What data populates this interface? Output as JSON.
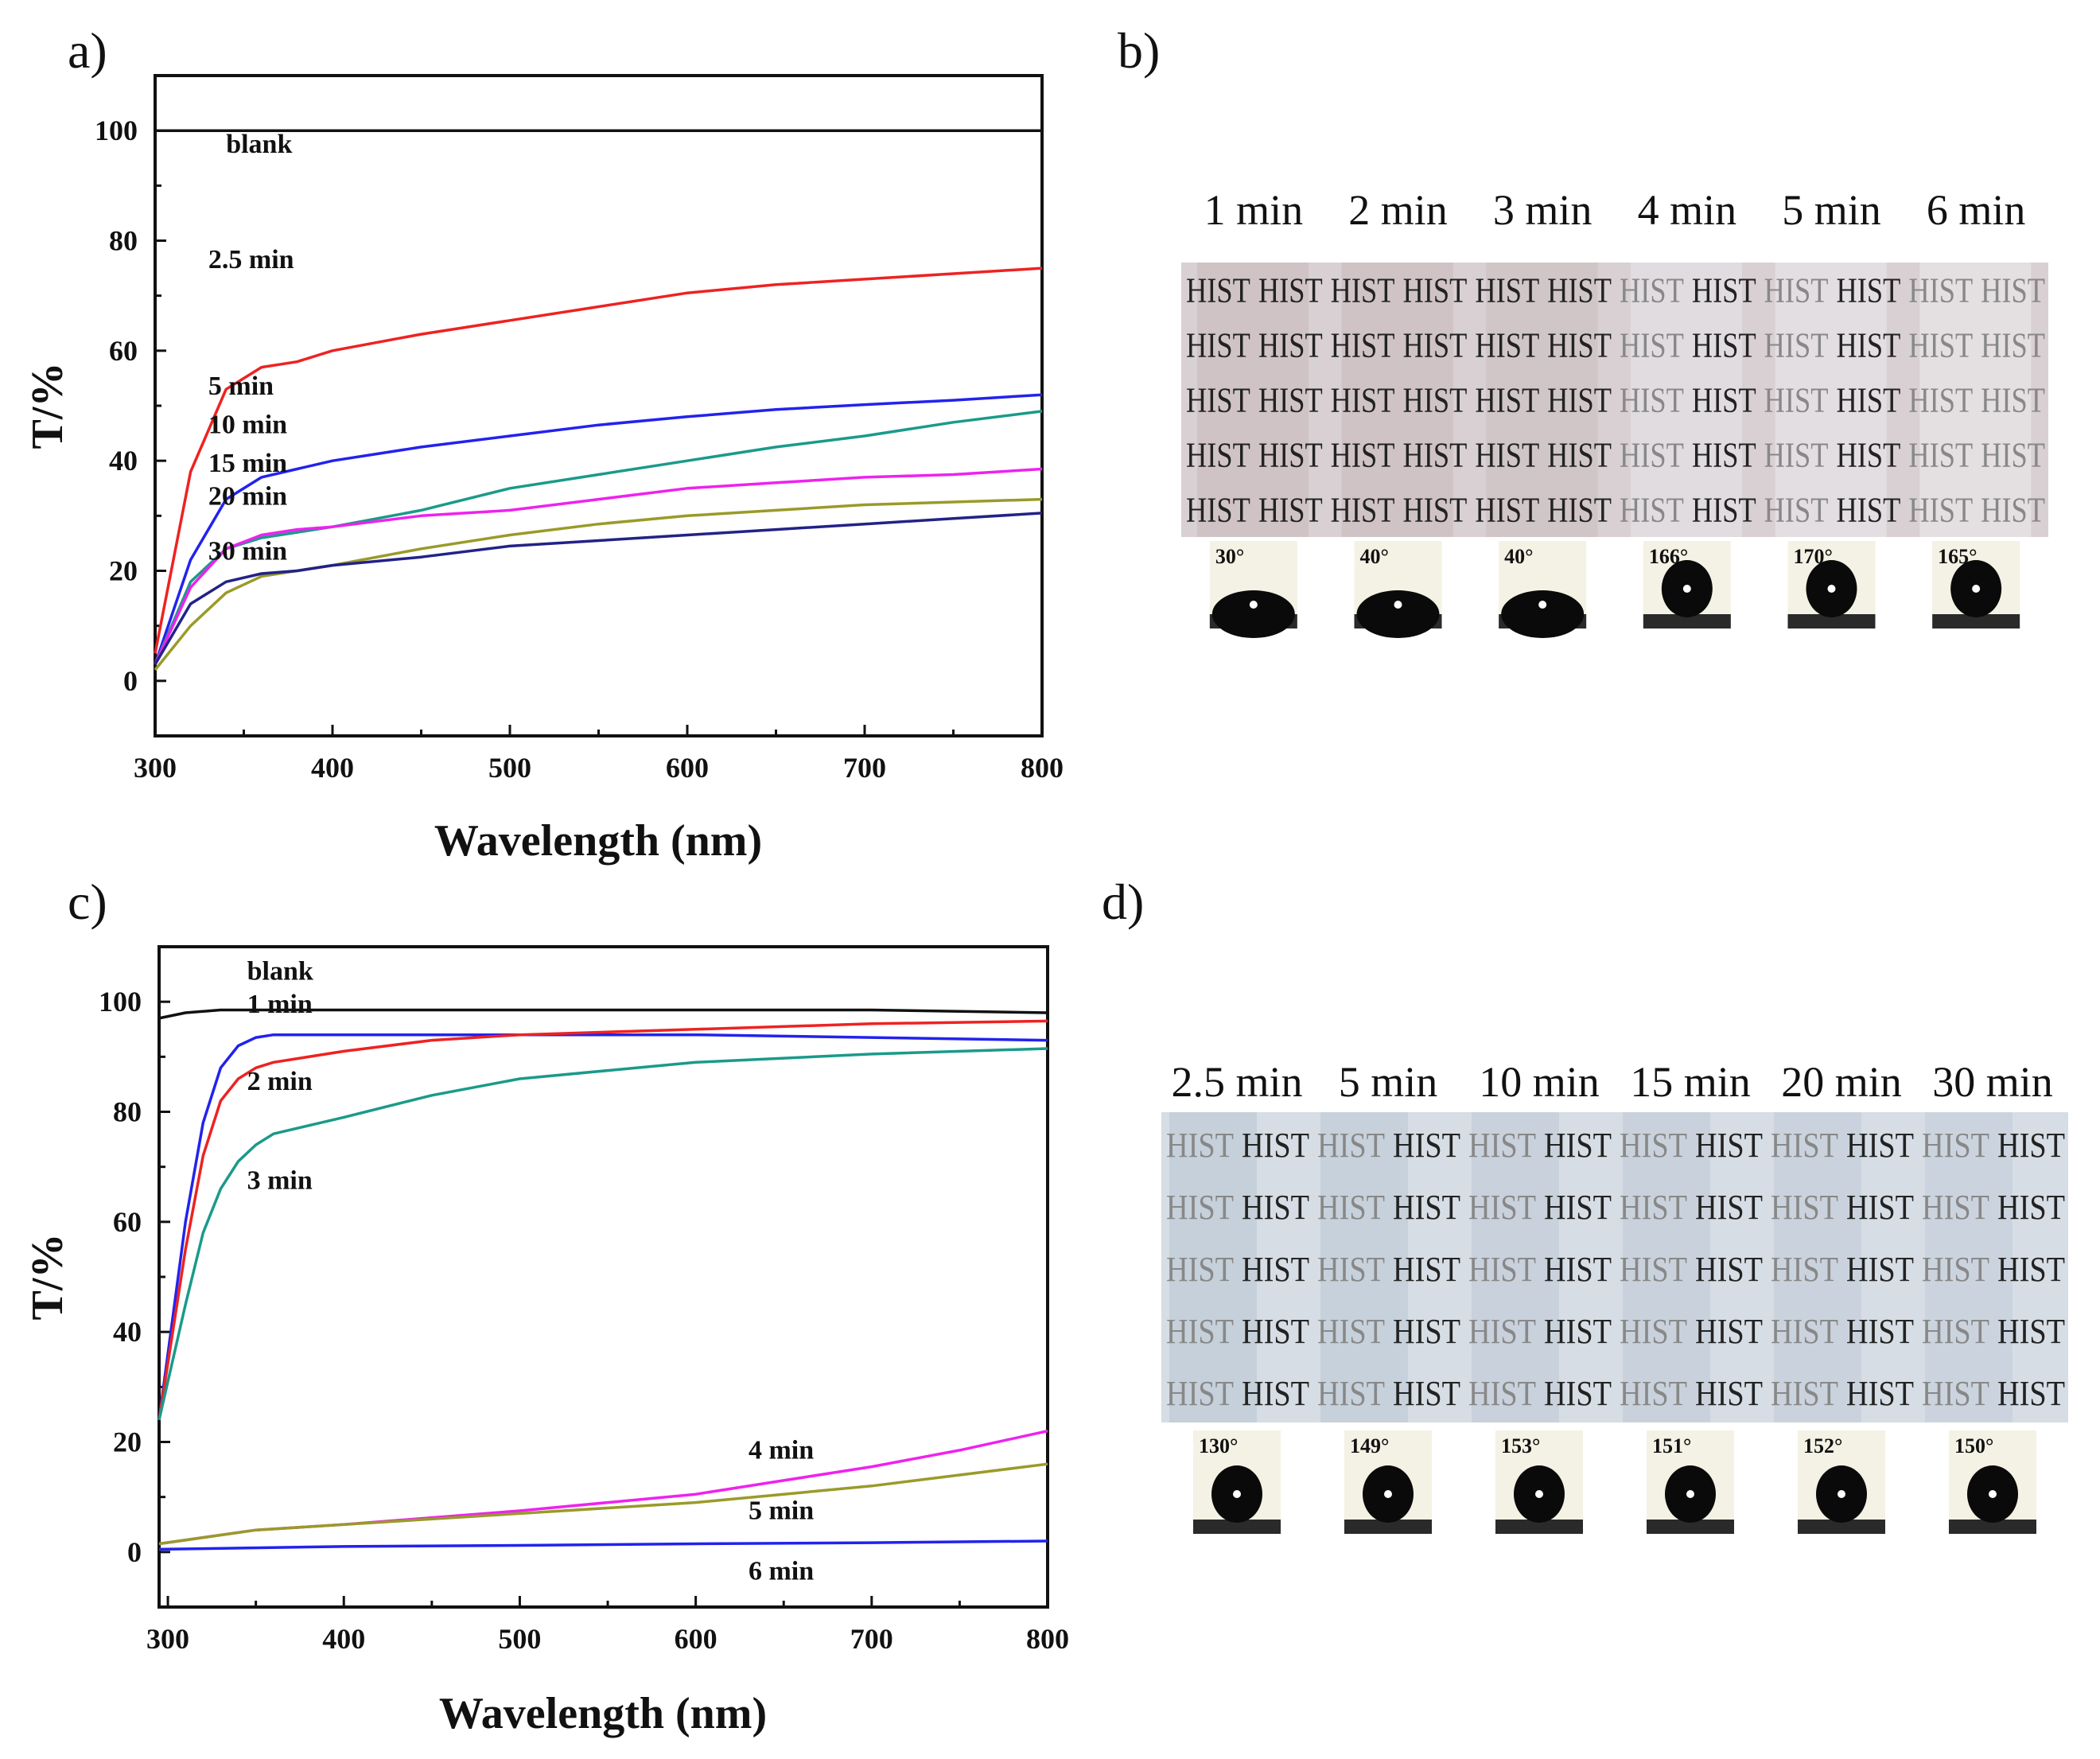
{
  "chart_data": [
    {
      "panel": "a)",
      "type": "line",
      "xlabel": "Wavelength (nm)",
      "ylabel": "T/%",
      "xlim": [
        300,
        800
      ],
      "ylim": [
        -10,
        110
      ],
      "xticks": [
        300,
        400,
        500,
        600,
        700,
        800
      ],
      "yticks": [
        0,
        20,
        40,
        60,
        80,
        100
      ],
      "series": [
        {
          "name": "blank",
          "color": "#111111",
          "label_at": [
            340,
            96
          ],
          "x": [
            300,
            400,
            500,
            600,
            700,
            800
          ],
          "values": [
            100,
            100,
            100,
            100,
            100,
            100
          ]
        },
        {
          "name": "2.5 min",
          "color": "#ee2222",
          "label_at": [
            330,
            75
          ],
          "x": [
            300,
            320,
            340,
            360,
            380,
            400,
            450,
            500,
            550,
            600,
            650,
            700,
            750,
            800
          ],
          "values": [
            5,
            38,
            53,
            57,
            58,
            60,
            63,
            65.5,
            68,
            70.5,
            72,
            73,
            74,
            75
          ]
        },
        {
          "name": "5 min",
          "color": "#2222ee",
          "label_at": [
            330,
            52
          ],
          "x": [
            300,
            320,
            340,
            360,
            380,
            400,
            450,
            500,
            550,
            600,
            650,
            700,
            750,
            800
          ],
          "values": [
            3,
            22,
            33,
            37,
            38.5,
            40,
            42.5,
            44.5,
            46.5,
            48,
            49.3,
            50.2,
            51,
            52
          ]
        },
        {
          "name": "10 min",
          "color": "#1a9a8a",
          "label_at": [
            330,
            45
          ],
          "x": [
            300,
            320,
            340,
            360,
            380,
            400,
            450,
            500,
            550,
            600,
            650,
            700,
            750,
            800
          ],
          "values": [
            3,
            18,
            24,
            26,
            27,
            28,
            31,
            35,
            37.5,
            40,
            42.5,
            44.5,
            47,
            49
          ]
        },
        {
          "name": "15 min",
          "color": "#ee22ee",
          "label_at": [
            330,
            38
          ],
          "x": [
            300,
            320,
            340,
            360,
            380,
            400,
            450,
            500,
            550,
            600,
            650,
            700,
            750,
            800
          ],
          "values": [
            3,
            17,
            24,
            26.5,
            27.5,
            28,
            30,
            31,
            33,
            35,
            36,
            37,
            37.5,
            38.5
          ]
        },
        {
          "name": "20 min",
          "color": "#9a9a2a",
          "label_at": [
            330,
            32
          ],
          "x": [
            300,
            320,
            340,
            360,
            380,
            400,
            450,
            500,
            550,
            600,
            650,
            700,
            750,
            800
          ],
          "values": [
            2,
            10,
            16,
            19,
            20,
            21,
            24,
            26.5,
            28.5,
            30,
            31,
            32,
            32.5,
            33
          ]
        },
        {
          "name": "30 min",
          "color": "#222288",
          "label_at": [
            330,
            22
          ],
          "x": [
            300,
            320,
            340,
            360,
            380,
            400,
            450,
            500,
            550,
            600,
            650,
            700,
            750,
            800
          ],
          "values": [
            3,
            14,
            18,
            19.5,
            20,
            21,
            22.5,
            24.5,
            25.5,
            26.5,
            27.5,
            28.5,
            29.5,
            30.5
          ]
        }
      ]
    },
    {
      "panel": "c)",
      "type": "line",
      "xlabel": "Wavelength (nm)",
      "ylabel": "T/%",
      "xlim": [
        295,
        800
      ],
      "ylim": [
        -10,
        110
      ],
      "xticks": [
        300,
        400,
        500,
        600,
        700,
        800
      ],
      "yticks": [
        0,
        20,
        40,
        60,
        80,
        100
      ],
      "series": [
        {
          "name": "blank",
          "color": "#111111",
          "label_at": [
            345,
            104
          ],
          "x": [
            295,
            310,
            330,
            400,
            500,
            600,
            700,
            800
          ],
          "values": [
            97,
            98,
            98.5,
            98.5,
            98.5,
            98.5,
            98.5,
            98
          ]
        },
        {
          "name": "1 min",
          "color": "#2222ee",
          "label_at": [
            345,
            98
          ],
          "x": [
            295,
            310,
            320,
            330,
            340,
            350,
            360,
            400,
            500,
            600,
            700,
            800
          ],
          "values": [
            24,
            60,
            78,
            88,
            92,
            93.5,
            94,
            94,
            94,
            94,
            93.5,
            93
          ]
        },
        {
          "name": "2 min",
          "color": "#ee2222",
          "label_at": [
            345,
            84
          ],
          "x": [
            295,
            310,
            320,
            330,
            340,
            350,
            360,
            400,
            450,
            500,
            600,
            700,
            800
          ],
          "values": [
            24,
            55,
            72,
            82,
            86,
            88,
            89,
            91,
            93,
            94,
            95,
            96,
            96.5
          ]
        },
        {
          "name": "3 min",
          "color": "#1a9a8a",
          "label_at": [
            345,
            66
          ],
          "x": [
            295,
            310,
            320,
            330,
            340,
            350,
            360,
            400,
            450,
            500,
            550,
            600,
            700,
            800
          ],
          "values": [
            24,
            45,
            58,
            66,
            71,
            74,
            76,
            79,
            83,
            86,
            87.5,
            89,
            90.5,
            91.5
          ]
        },
        {
          "name": "4 min",
          "color": "#ee22ee",
          "label_at": [
            630,
            17
          ],
          "x": [
            295,
            350,
            400,
            500,
            550,
            600,
            650,
            700,
            750,
            800
          ],
          "values": [
            1.5,
            4,
            5,
            7.5,
            9,
            10.5,
            13,
            15.5,
            18.5,
            22
          ]
        },
        {
          "name": "5 min",
          "color": "#9a9a2a",
          "label_at": [
            630,
            6
          ],
          "x": [
            295,
            350,
            400,
            500,
            550,
            600,
            650,
            700,
            750,
            800
          ],
          "values": [
            1.5,
            4,
            5,
            7,
            8,
            9,
            10.5,
            12,
            14,
            16
          ]
        },
        {
          "name": "6 min",
          "color": "#2222ee",
          "label_at": [
            630,
            -5
          ],
          "x": [
            295,
            400,
            500,
            600,
            700,
            800
          ],
          "values": [
            0.5,
            1,
            1.2,
            1.5,
            1.7,
            2
          ]
        }
      ]
    }
  ],
  "panel_b": {
    "label": "b)",
    "time_labels": [
      "1 min",
      "2 min",
      "3 min",
      "4 min",
      "5 min",
      "6 min"
    ],
    "hist_text": "HIST",
    "contact_angles": [
      "30°",
      "40°",
      "40°",
      "166°",
      "170°",
      "165°"
    ]
  },
  "panel_d": {
    "label": "d)",
    "time_labels": [
      "2.5 min",
      "5 min",
      "10 min",
      "15 min",
      "20 min",
      "30 min"
    ],
    "hist_text": "HIST",
    "contact_angles": [
      "130°",
      "149°",
      "153°",
      "151°",
      "152°",
      "150°"
    ]
  }
}
